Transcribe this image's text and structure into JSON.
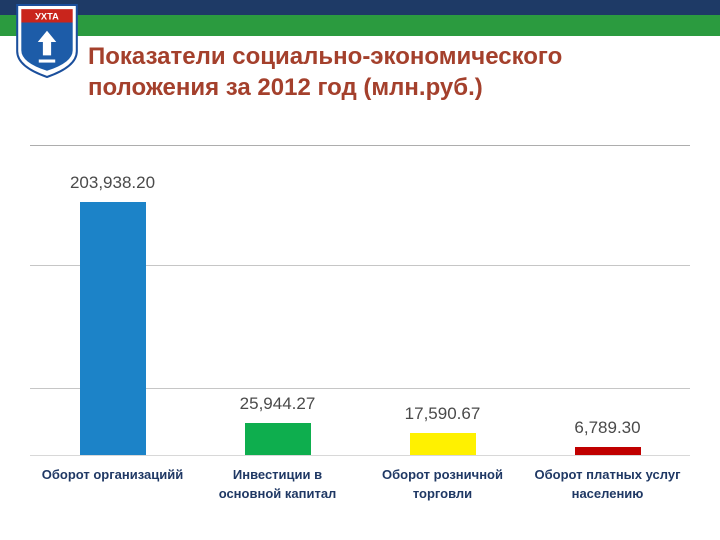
{
  "logo": {
    "text": "УХТА"
  },
  "title": {
    "line1": "Показатели социально-экономического",
    "line2": "положения за 2012 год (млн.руб.)"
  },
  "chart_data": {
    "type": "bar",
    "title": "Показатели социально-экономического положения за 2012 год (млн.руб.)",
    "categories": [
      "Оборот организацийй",
      "Инвестиции в основной капитал",
      "Оборот розничной торговли",
      "Оборот платных услуг населению"
    ],
    "values": [
      203938.2,
      25944.27,
      17590.67,
      6789.3
    ],
    "value_labels": [
      "203,938.20",
      "25,944.27",
      "17,590.67",
      "6,789.30"
    ],
    "label_lines": [
      [
        "Оборот организацийй"
      ],
      [
        "Инвестиции в",
        "основной капитал"
      ],
      [
        "Оборот розничной",
        "торговли"
      ],
      [
        "Оборот платных услуг",
        "населению"
      ]
    ],
    "bar_colors": [
      "#1C83C8",
      "#0EAE4E",
      "#FFF100",
      "#C00000"
    ],
    "xlabel": "",
    "ylabel": "",
    "ylim": [
      0,
      250000
    ],
    "grid": true,
    "legend": "none"
  },
  "theme": {
    "stripe_navy": "#1E3A66",
    "stripe_green": "#2B9B3F",
    "title_color": "#A4402C",
    "value_label_color": "#4A4A4A",
    "category_label_color": "#1F3864"
  }
}
